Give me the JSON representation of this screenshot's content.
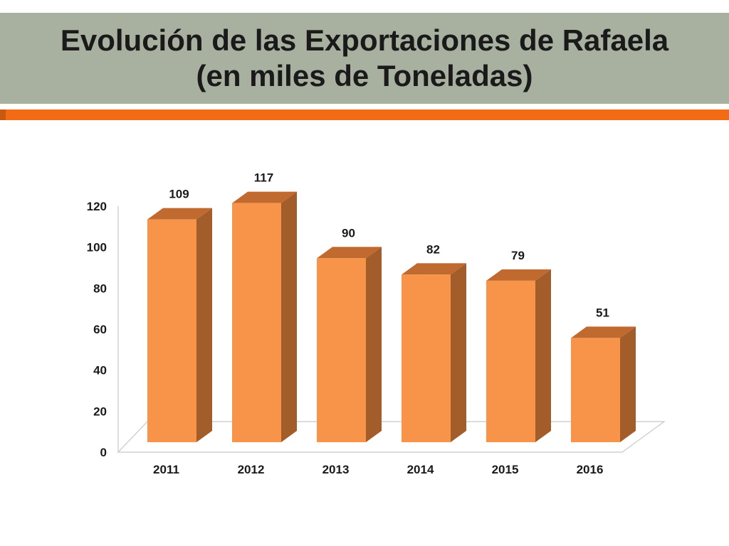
{
  "slide": {
    "title_line1": "Evolución de las Exportaciones de Rafaela",
    "title_line2": "(en miles de Toneladas)"
  },
  "colors": {
    "title_band": "#a8b0a0",
    "accent_stripe": "#f36b14",
    "bar_front": "#f7944a",
    "bar_side": "#a35d2a",
    "bar_top": "#c06a30"
  },
  "chart_data": {
    "type": "bar",
    "categories": [
      "2011",
      "2012",
      "2013",
      "2014",
      "2015",
      "2016"
    ],
    "values": [
      109,
      117,
      90,
      82,
      79,
      51
    ],
    "data_labels": [
      "109",
      "117",
      "90",
      "82",
      "79",
      "51"
    ],
    "yticks": [
      0,
      20,
      40,
      60,
      80,
      100,
      120
    ],
    "ylim": [
      0,
      120
    ],
    "grid": false,
    "legend": "none",
    "style": "3d-column"
  }
}
